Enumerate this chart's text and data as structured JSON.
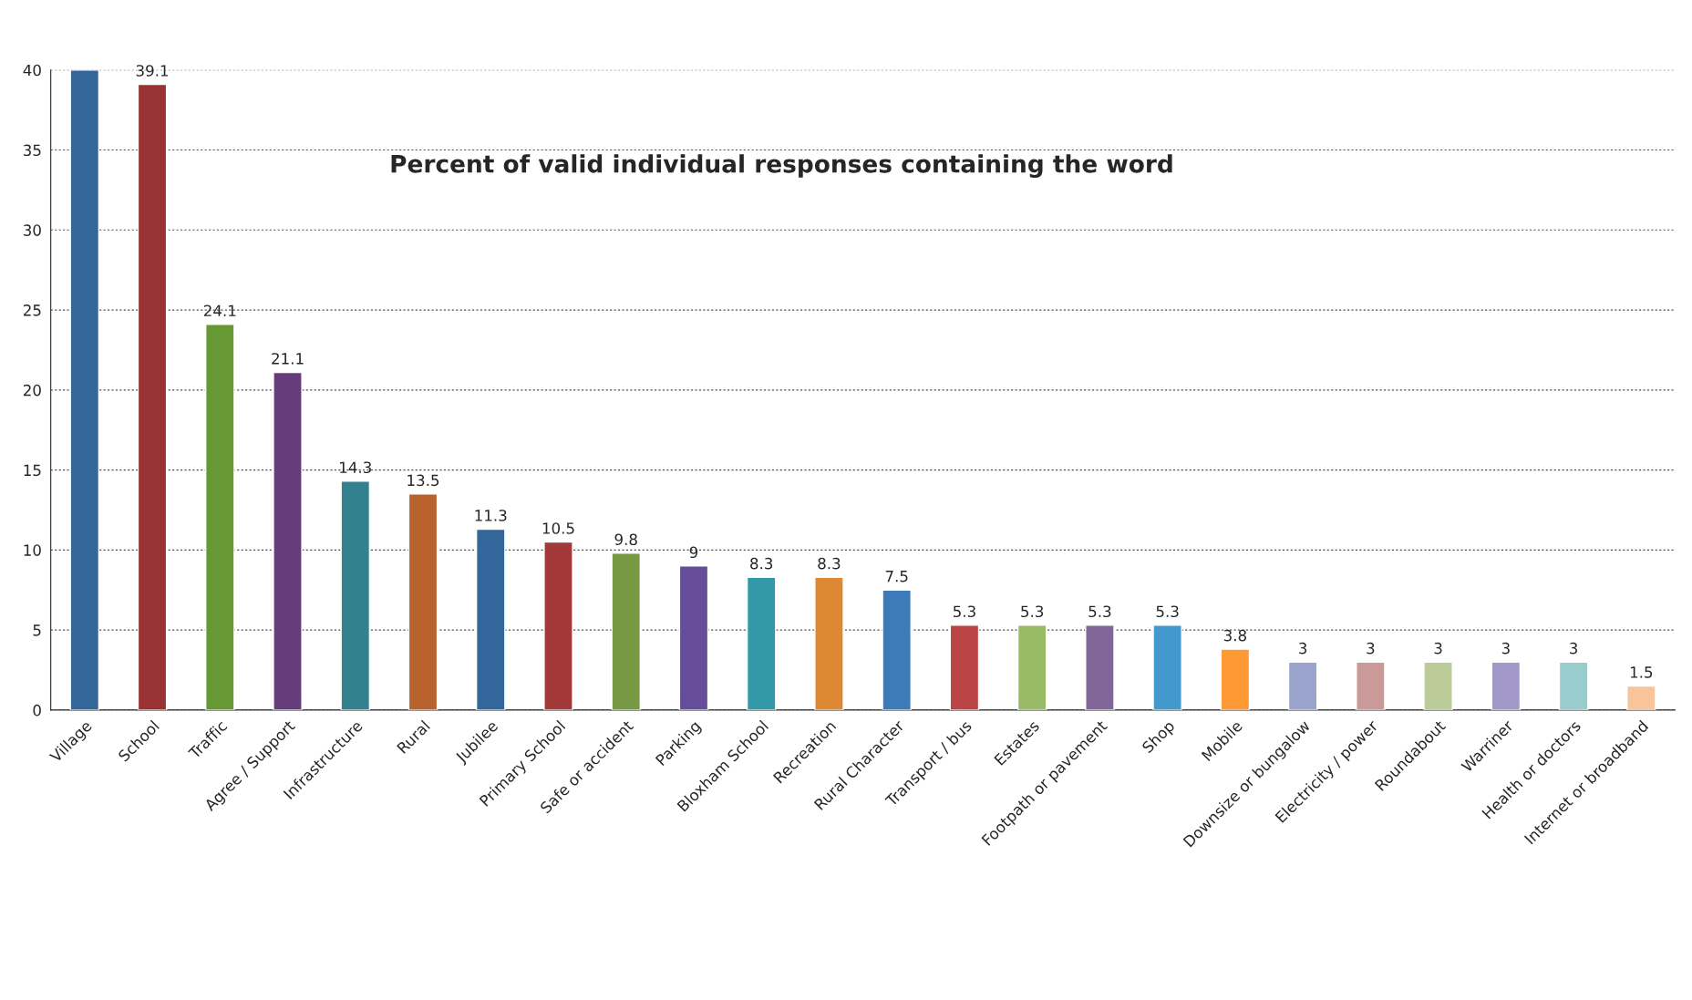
{
  "chart_data": {
    "type": "bar",
    "title": "Percent of valid individual responses containing the word",
    "categories": [
      "Village",
      "School",
      "Traffic",
      "Agree / Support",
      "Infrastructure",
      "Rural",
      "Jubilee",
      "Primary School",
      "Safe or accident",
      "Parking",
      "Bloxham School",
      "Recreation",
      "Rural Character",
      "Transport / bus",
      "Estates",
      "Footpath or pavement",
      "Shop",
      "Mobile",
      "Downsize or bungalow",
      "Electricity / power",
      "Roundabout",
      "Warriner",
      "Health or doctors",
      "Internet or broadband"
    ],
    "values": [
      40,
      39.1,
      24.1,
      21.1,
      14.3,
      13.5,
      11.3,
      10.5,
      9.8,
      9,
      8.3,
      8.3,
      7.5,
      5.3,
      5.3,
      5.3,
      5.3,
      3.8,
      3,
      3,
      3,
      3,
      3,
      1.5
    ],
    "value_labels": [
      null,
      "39.1",
      "24.1",
      "21.1",
      "14.3",
      "13.5",
      "11.3",
      "10.5",
      "9.8",
      "9",
      "8.3",
      "8.3",
      "7.5",
      "5.3",
      "5.3",
      "5.3",
      "5.3",
      "3.8",
      "3",
      "3",
      "3",
      "3",
      "3",
      "1.5"
    ],
    "colors": [
      "#336699",
      "#993333",
      "#669933",
      "#663d7a",
      "#33808f",
      "#b8622e",
      "#33669a",
      "#a33838",
      "#779944",
      "#664d99",
      "#3399a8",
      "#dd8833",
      "#3d7ab8",
      "#bb4444",
      "#99bb66",
      "#806699",
      "#4499cc",
      "#ff9933",
      "#99a3cc",
      "#cc9999",
      "#bbcc99",
      "#a399c8",
      "#99cccc",
      "#f8c49a"
    ],
    "ylim": [
      0,
      40
    ],
    "yticks": [
      0,
      5,
      10,
      15,
      20,
      25,
      30,
      35,
      40
    ],
    "grid": "y"
  }
}
